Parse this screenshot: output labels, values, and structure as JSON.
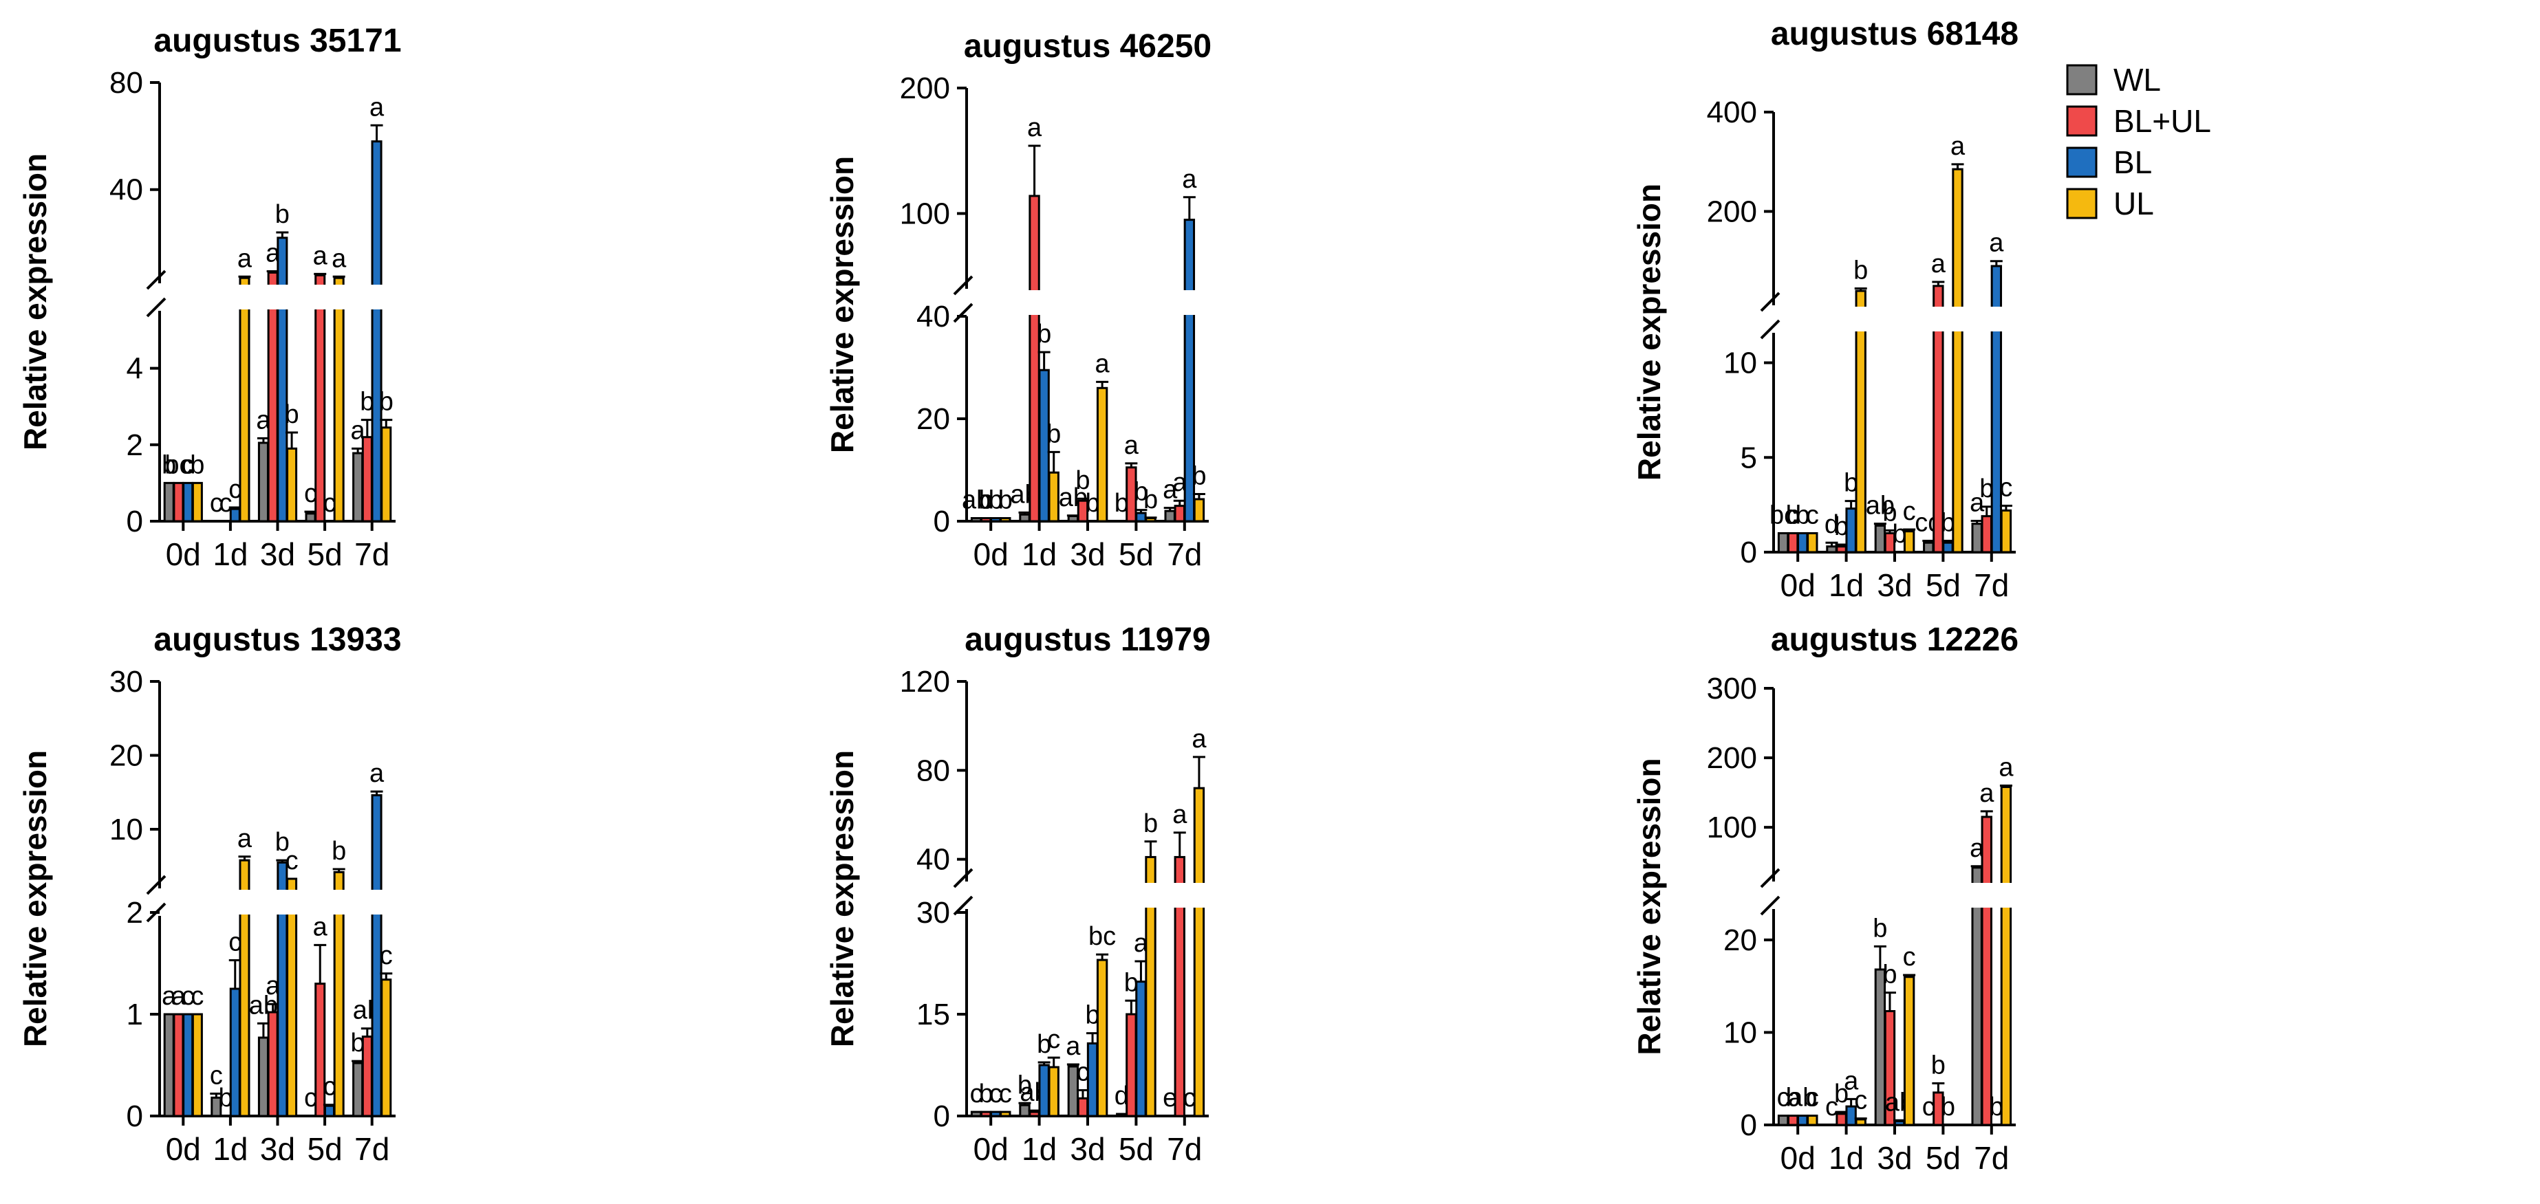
{
  "legend": {
    "items": [
      {
        "label": "WL",
        "color": "#808080"
      },
      {
        "label": "BL+UL",
        "color": "#ef4a4a"
      },
      {
        "label": "BL",
        "color": "#1f6fbf"
      },
      {
        "label": "UL",
        "color": "#f5b90f"
      }
    ]
  },
  "chart_data": [
    {
      "type": "bar",
      "title": "augustus 35171",
      "ylabel": "Relative expression",
      "categories": [
        "0d",
        "1d",
        "3d",
        "5d",
        "7d"
      ],
      "broken_axis": {
        "lower_range": [
          0,
          5
        ],
        "upper_range": [
          5,
          80
        ],
        "lower_ticks": [
          "0",
          "2",
          "4"
        ],
        "upper_ticks": [
          "40",
          "80"
        ]
      },
      "series": [
        {
          "name": "WL",
          "values": [
            1,
            0,
            2.05,
            0.2,
            1.78
          ],
          "errors": [
            0,
            0,
            0.12,
            0.05,
            0.12
          ],
          "letters": [
            "b",
            "c",
            "a",
            "c",
            "a"
          ]
        },
        {
          "name": "BL+UL",
          "values": [
            1,
            0,
            9,
            8,
            2.2
          ],
          "errors": [
            0,
            0,
            0.5,
            0.5,
            0.45
          ],
          "letters": [
            "bc",
            "c",
            "a",
            "a",
            "b"
          ]
        },
        {
          "name": "BL",
          "values": [
            1,
            0.32,
            22,
            0,
            58
          ],
          "errors": [
            0,
            0.04,
            2,
            0,
            6
          ],
          "letters": [
            "c",
            "c",
            "b",
            "c",
            "a"
          ]
        },
        {
          "name": "UL",
          "values": [
            1,
            7,
            1.9,
            7,
            2.45
          ],
          "errors": [
            0,
            0.5,
            0.42,
            0.5,
            0.2
          ],
          "letters": [
            "b",
            "a",
            "b",
            "a",
            "b"
          ]
        }
      ]
    },
    {
      "type": "bar",
      "title": "augustus 46250",
      "ylabel": "Relative expression",
      "categories": [
        "0d",
        "1d",
        "3d",
        "5d",
        "7d"
      ],
      "broken_axis": {
        "lower_range": [
          0,
          40
        ],
        "upper_range": [
          40,
          200
        ],
        "lower_ticks": [
          "0",
          "20",
          "40"
        ],
        "upper_ticks": [
          "100",
          "200"
        ]
      },
      "series": [
        {
          "name": "WL",
          "values": [
            0.6,
            1.3,
            1,
            0,
            2
          ],
          "errors": [
            0,
            0.4,
            0.1,
            0,
            0.6
          ],
          "letters": [
            "ab",
            "ab",
            "ab",
            "b",
            "a"
          ]
        },
        {
          "name": "BL+UL",
          "values": [
            0.6,
            114,
            4,
            10.5,
            3
          ],
          "errors": [
            0,
            40,
            0.4,
            0.8,
            1
          ],
          "letters": [
            "b",
            "a",
            "b",
            "a",
            "a"
          ]
        },
        {
          "name": "BL",
          "values": [
            0.6,
            29.5,
            0,
            1.6,
            95
          ],
          "errors": [
            0,
            3.5,
            0,
            0.6,
            18
          ],
          "letters": [
            "b",
            "b",
            "b",
            "b",
            "a"
          ]
        },
        {
          "name": "UL",
          "values": [
            0.6,
            9.5,
            26,
            0.6,
            4.3
          ],
          "errors": [
            0,
            4,
            1.2,
            0.1,
            1
          ],
          "letters": [
            "b",
            "b",
            "a",
            "b",
            "b"
          ]
        }
      ]
    },
    {
      "type": "bar",
      "title": "augustus 68148",
      "ylabel": "Relative expression",
      "categories": [
        "0d",
        "1d",
        "3d",
        "5d",
        "7d"
      ],
      "broken_axis": {
        "lower_range": [
          0,
          11
        ],
        "upper_range": [
          11,
          400
        ],
        "lower_ticks": [
          "0",
          "5",
          "10"
        ],
        "upper_ticks": [
          "200",
          "400"
        ]
      },
      "series": [
        {
          "name": "WL",
          "values": [
            1,
            0.3,
            1.4,
            0.5,
            1.5
          ],
          "errors": [
            0,
            0.2,
            0.1,
            0.1,
            0.15
          ],
          "letters": [
            "bc",
            "d",
            "ab",
            "cd",
            "a"
          ]
        },
        {
          "name": "BL+UL",
          "values": [
            1,
            0.3,
            1,
            50,
            1.9
          ],
          "errors": [
            0,
            0.1,
            0.15,
            8,
            0.5
          ],
          "letters": [
            "b",
            "b",
            "b",
            "a",
            "b"
          ]
        },
        {
          "name": "BL",
          "values": [
            1,
            2.3,
            0,
            0.5,
            90
          ],
          "errors": [
            0,
            0.4,
            0,
            0.1,
            10
          ],
          "letters": [
            "b",
            "b",
            "b",
            "b",
            "a"
          ]
        },
        {
          "name": "UL",
          "values": [
            1,
            40,
            1.1,
            285,
            2.2
          ],
          "errors": [
            0,
            5,
            0.1,
            10,
            0.25
          ],
          "letters": [
            "c",
            "b",
            "c",
            "a",
            "c"
          ]
        }
      ]
    },
    {
      "type": "bar",
      "title": "augustus 13933",
      "ylabel": "Relative expression",
      "categories": [
        "0d",
        "1d",
        "3d",
        "5d",
        "7d"
      ],
      "broken_axis": {
        "lower_range": [
          0,
          2
        ],
        "upper_range": [
          2,
          30
        ],
        "lower_ticks": [
          "0",
          "1",
          "2"
        ],
        "upper_ticks": [
          "10",
          "20",
          "30"
        ]
      },
      "series": [
        {
          "name": "WL",
          "values": [
            1,
            0.18,
            0.77,
            0,
            0.52
          ],
          "errors": [
            0,
            0.04,
            0.14,
            0,
            0.02
          ],
          "letters": [
            "a",
            "c",
            "ab",
            "c",
            "b"
          ]
        },
        {
          "name": "BL+UL",
          "values": [
            1,
            0,
            1.02,
            1.3,
            0.78
          ],
          "errors": [
            0,
            0,
            0.08,
            0.38,
            0.08
          ],
          "letters": [
            "a",
            "b",
            "a",
            "a",
            "ab"
          ]
        },
        {
          "name": "BL",
          "values": [
            1,
            1.25,
            5.5,
            0.1,
            14.6
          ],
          "errors": [
            0,
            0.28,
            0.3,
            0.01,
            0.5
          ],
          "letters": [
            "c",
            "c",
            "b",
            "c",
            "a"
          ]
        },
        {
          "name": "UL",
          "values": [
            1,
            5.8,
            3.3,
            4.2,
            1.34
          ],
          "errors": [
            0,
            0.5,
            0,
            0.4,
            0.06
          ],
          "letters": [
            "c",
            "a",
            "c",
            "b",
            "c"
          ]
        }
      ]
    },
    {
      "type": "bar",
      "title": "augustus 11979",
      "ylabel": "Relative expression",
      "categories": [
        "0d",
        "1d",
        "3d",
        "5d",
        "7d"
      ],
      "broken_axis": {
        "lower_range": [
          0,
          30
        ],
        "upper_range": [
          30,
          120
        ],
        "lower_ticks": [
          "0",
          "15",
          "30"
        ],
        "upper_ticks": [
          "40",
          "80",
          "120"
        ]
      },
      "series": [
        {
          "name": "WL",
          "values": [
            0.6,
            1.6,
            7.3,
            0.3,
            0
          ],
          "errors": [
            0,
            0.3,
            0.3,
            0,
            0
          ],
          "letters": [
            "c",
            "b",
            "a",
            "d",
            "e"
          ]
        },
        {
          "name": "BL+UL",
          "values": [
            0.6,
            0.6,
            2.6,
            15,
            41
          ],
          "errors": [
            0,
            0.2,
            1.2,
            2,
            11
          ],
          "letters": [
            "b",
            "ab",
            "c",
            "b",
            "a"
          ]
        },
        {
          "name": "BL",
          "values": [
            0.6,
            7.5,
            10.7,
            19.8,
            0
          ],
          "errors": [
            0,
            0.4,
            1.5,
            3,
            0
          ],
          "letters": [
            "c",
            "b",
            "b",
            "a",
            "c"
          ]
        },
        {
          "name": "UL",
          "values": [
            0.6,
            7.2,
            23,
            41,
            72
          ],
          "errors": [
            0,
            1.4,
            0.8,
            7,
            14
          ],
          "letters": [
            "c",
            "c",
            "bc",
            "b",
            "a"
          ]
        }
      ]
    },
    {
      "type": "bar",
      "title": "augustus 12226",
      "ylabel": "Relative expression",
      "categories": [
        "0d",
        "1d",
        "3d",
        "5d",
        "7d"
      ],
      "broken_axis": {
        "lower_range": [
          0,
          22
        ],
        "upper_range": [
          22,
          300
        ],
        "lower_ticks": [
          "0",
          "10",
          "20"
        ],
        "upper_ticks": [
          "100",
          "200",
          "300"
        ]
      },
      "series": [
        {
          "name": "WL",
          "values": [
            1,
            0,
            16.8,
            0,
            42
          ],
          "errors": [
            0,
            0,
            2.5,
            0,
            2
          ],
          "letters": [
            "c",
            "c",
            "b",
            "c",
            "a"
          ]
        },
        {
          "name": "BL+UL",
          "values": [
            1,
            1.2,
            12.3,
            3.5,
            115
          ],
          "errors": [
            0,
            0.2,
            2,
            1,
            8
          ],
          "letters": [
            "b",
            "b",
            "b",
            "b",
            "a"
          ]
        },
        {
          "name": "BL",
          "values": [
            1,
            2,
            0.4,
            0,
            0
          ],
          "errors": [
            0,
            0.8,
            0.1,
            0,
            0
          ],
          "letters": [
            "ab",
            "a",
            "ab",
            "b",
            "b"
          ]
        },
        {
          "name": "UL",
          "values": [
            1,
            0.6,
            16,
            0,
            158
          ],
          "errors": [
            0,
            0.1,
            0.2,
            0,
            2
          ],
          "letters": [
            "c",
            "c",
            "c",
            "",
            "a"
          ]
        }
      ]
    }
  ]
}
